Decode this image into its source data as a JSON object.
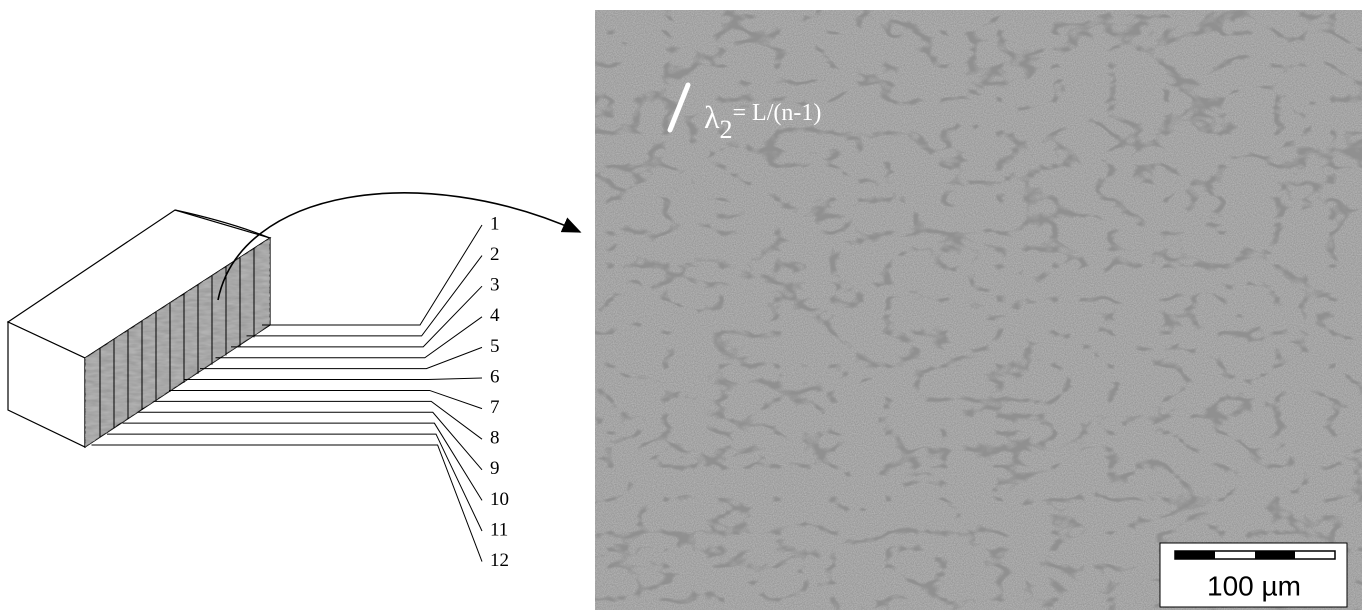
{
  "slice_labels": [
    "1",
    "2",
    "3",
    "4",
    "5",
    "6",
    "7",
    "8",
    "9",
    "10",
    "11",
    "12"
  ],
  "micrograph": {
    "formula": {
      "symbol": "λ",
      "subscript": "2",
      "rest": "= L/(n-1)"
    },
    "scale_bar": "100 µm"
  }
}
